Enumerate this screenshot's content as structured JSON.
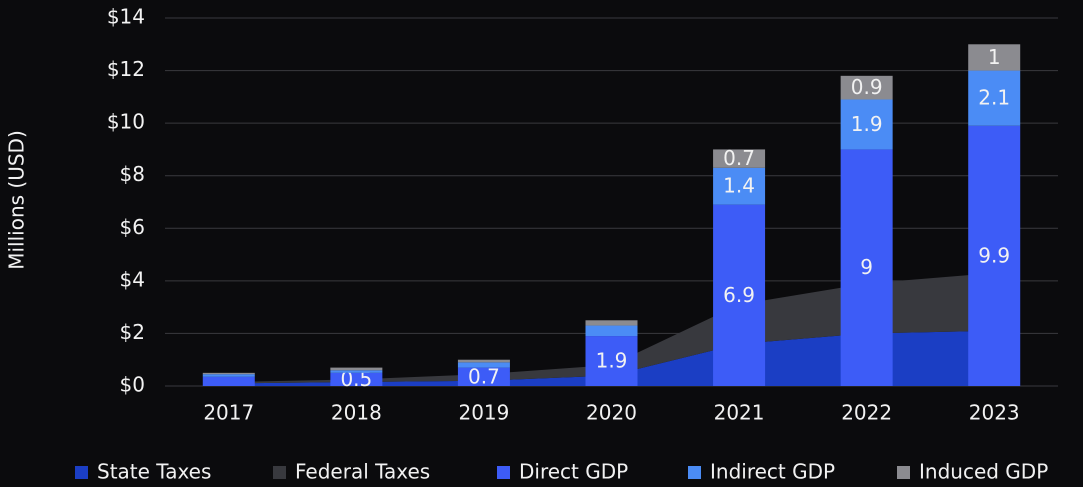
{
  "chart_data": {
    "type": "bar",
    "y_label": "Millions (USD)",
    "categories": [
      "2017",
      "2018",
      "2019",
      "2020",
      "2021",
      "2022",
      "2023"
    ],
    "areas": [
      {
        "name": "State Taxes",
        "color": "#1b3ec4",
        "values": [
          0.1,
          0.15,
          0.2,
          0.4,
          1.6,
          2.0,
          2.1
        ]
      },
      {
        "name": "Federal Taxes",
        "color": "#38393e",
        "values": [
          0.05,
          0.1,
          0.25,
          0.4,
          1.5,
          1.9,
          2.2
        ]
      }
    ],
    "series": [
      {
        "name": "Direct GDP",
        "color": "#3d5cf7",
        "values": [
          0.35,
          0.5,
          0.7,
          1.9,
          6.9,
          9,
          9.9
        ]
      },
      {
        "name": "Indirect GDP",
        "color": "#4b8cf5",
        "values": [
          0.1,
          0.1,
          0.2,
          0.4,
          1.4,
          1.9,
          2.1
        ]
      },
      {
        "name": "Induced GDP",
        "color": "#8b8b90",
        "values": [
          0.05,
          0.1,
          0.1,
          0.2,
          0.7,
          0.9,
          1
        ]
      }
    ],
    "ylim": [
      0,
      14
    ],
    "yticks": [
      {
        "value": 0,
        "label": "$0"
      },
      {
        "value": 2,
        "label": "$2"
      },
      {
        "value": 4,
        "label": "$4"
      },
      {
        "value": 6,
        "label": "$6"
      },
      {
        "value": 8,
        "label": "$8"
      },
      {
        "value": 10,
        "label": "$10"
      },
      {
        "value": 12,
        "label": "$12"
      },
      {
        "value": 14,
        "label": "$14"
      }
    ],
    "grid": true
  }
}
